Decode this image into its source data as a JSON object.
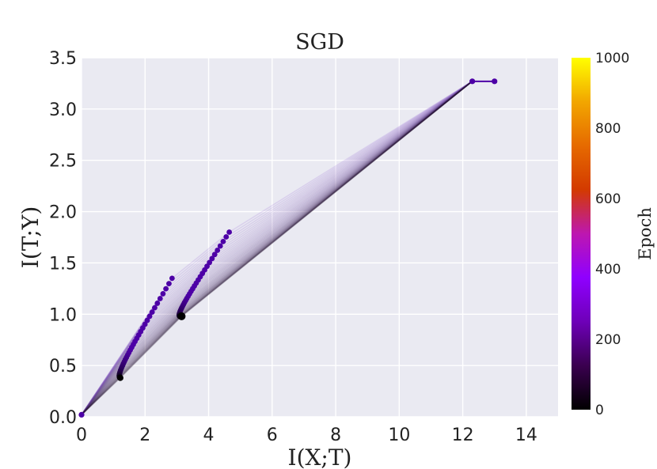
{
  "chart_data": {
    "type": "line",
    "title": "SGD",
    "xlabel": "I(X;T)",
    "ylabel": "I(T;Y)",
    "xlim": [
      0,
      15
    ],
    "ylim": [
      0,
      3.5
    ],
    "xticks": [
      "0",
      "2",
      "4",
      "6",
      "8",
      "10",
      "12",
      "14"
    ],
    "yticks": [
      "0.0",
      "0.5",
      "1.0",
      "1.5",
      "2.0",
      "2.5",
      "3.0",
      "3.5"
    ],
    "grid": true,
    "colorbar": {
      "label": "Epoch",
      "range": [
        0,
        1000
      ],
      "ticks": [
        "0",
        "200",
        "400",
        "600",
        "800",
        "1000"
      ],
      "colormap": "gnuplot",
      "colors": [
        "#000000",
        "#3a004f",
        "#6e00b8",
        "#8f00ff",
        "#bd17b0",
        "#d33a00",
        "#e66a00",
        "#f2a600",
        "#ffff00"
      ]
    },
    "series": [
      {
        "layer": 1,
        "start_epoch": 0,
        "start": [
          13.0,
          3.27
        ],
        "end_epoch": 0,
        "end": [
          12.3,
          3.27
        ]
      },
      {
        "layer": 2,
        "start_epoch": 0,
        "start": [
          4.65,
          1.8
        ],
        "end_epoch": 1000,
        "end": [
          3.15,
          0.98
        ]
      },
      {
        "layer": 3,
        "start_epoch": 0,
        "start": [
          2.85,
          1.35
        ],
        "end_epoch": 1000,
        "end": [
          1.22,
          0.38
        ]
      },
      {
        "layer": 4,
        "start_epoch": 0,
        "start": [
          0.0,
          0.02
        ],
        "end_epoch": 1000,
        "end": [
          0.0,
          0.02
        ]
      }
    ],
    "plot_background": "#eaeaf2",
    "marker_color": "#4d00a6"
  }
}
